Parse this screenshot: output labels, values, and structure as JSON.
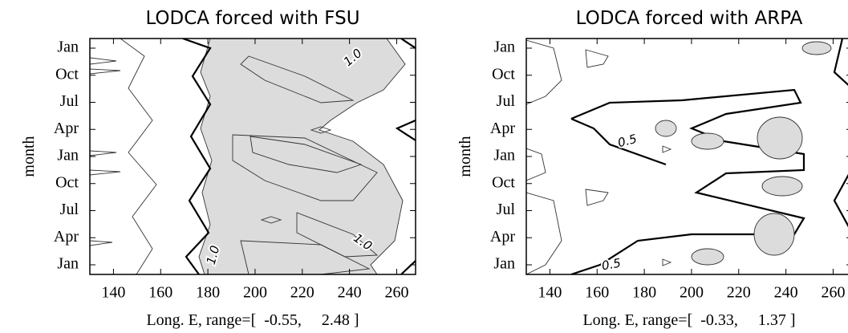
{
  "chart_data": [
    {
      "type": "contour",
      "title": "LODCA forced with FSU",
      "xlabel": "Long. E, range=[  -0.55,     2.48 ]",
      "ylabel": "month",
      "xlim": [
        130,
        268
      ],
      "xticks": [
        140,
        160,
        180,
        200,
        220,
        240,
        260
      ],
      "categories": [
        "Jan",
        "Apr",
        "Jul",
        "Oct",
        "Jan",
        "Apr",
        "Jul",
        "Oct",
        "Jan"
      ],
      "contour_labels": [
        "1.0",
        "1.0",
        "1.0"
      ]
    },
    {
      "type": "contour",
      "title": "LODCA forced with ARPA",
      "xlabel": "Long. E, range=[  -0.33,     1.37 ]",
      "ylabel": "month",
      "xlim": [
        130,
        268
      ],
      "xticks": [
        140,
        160,
        180,
        200,
        220,
        240,
        260
      ],
      "categories": [
        "Jan",
        "Apr",
        "Jul",
        "Oct",
        "Jan",
        "Apr",
        "Jul",
        "Oct",
        "Jan"
      ],
      "contour_labels": [
        "0.5",
        "0.5"
      ]
    }
  ]
}
